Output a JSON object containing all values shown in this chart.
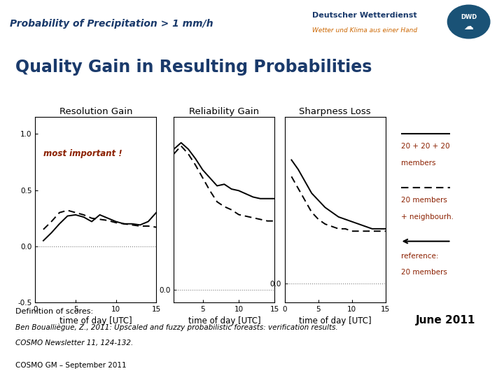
{
  "title_top": "Probability of Precipitation > 1 mm/h",
  "main_title": "Quality Gain in Resulting Probabilities",
  "subtitle": "June 2011",
  "subplot_titles": [
    "Resolution Gain",
    "Reliability Gain",
    "Sharpness Loss"
  ],
  "xlabel": "time of day [UTC]",
  "header_bg": "#d4d4d4",
  "main_bg": "#ffffff",
  "legend_bg": "#c0cce0",
  "footer_bg": "#ffffff",
  "bottom_bg": "#c8c8c8",
  "annotation_color": "#8B2000",
  "title_color": "#1a3a6b",
  "line_color": "#000000",
  "resolution_solid": [
    0.05,
    0.12,
    0.2,
    0.27,
    0.28,
    0.26,
    0.22,
    0.28,
    0.25,
    0.22,
    0.2,
    0.2,
    0.19,
    0.22,
    0.3
  ],
  "resolution_dashed": [
    0.15,
    0.22,
    0.3,
    0.32,
    0.3,
    0.28,
    0.25,
    0.24,
    0.23,
    0.21,
    0.2,
    0.19,
    0.18,
    0.18,
    0.17
  ],
  "reliability_solid": [
    0.88,
    0.92,
    0.88,
    0.82,
    0.75,
    0.7,
    0.65,
    0.66,
    0.63,
    0.62,
    0.6,
    0.58,
    0.57,
    0.57,
    0.57
  ],
  "reliability_dashed": [
    0.85,
    0.9,
    0.85,
    0.78,
    0.7,
    0.62,
    0.55,
    0.52,
    0.5,
    0.47,
    0.46,
    0.45,
    0.44,
    0.43,
    0.43
  ],
  "sharpness_solid": [
    0.52,
    0.48,
    0.43,
    0.38,
    0.35,
    0.32,
    0.3,
    0.28,
    0.27,
    0.26,
    0.25,
    0.24,
    0.23,
    0.23,
    0.23
  ],
  "sharpness_dashed": [
    0.45,
    0.4,
    0.35,
    0.3,
    0.27,
    0.25,
    0.24,
    0.23,
    0.23,
    0.22,
    0.22,
    0.22,
    0.22,
    0.22,
    0.22
  ],
  "x_values": [
    1,
    2,
    3,
    4,
    5,
    6,
    7,
    8,
    9,
    10,
    11,
    12,
    13,
    14,
    15
  ],
  "footer_text1": "Definition of scores:",
  "footer_text2": "Ben Boualliègue, Z., 2011: Upscaled and fuzzy probabilistic foreasts: verification results.",
  "footer_text3": "COSMO Newsletter 11, 124-132.",
  "bottom_text": "COSMO GM – September 2011"
}
